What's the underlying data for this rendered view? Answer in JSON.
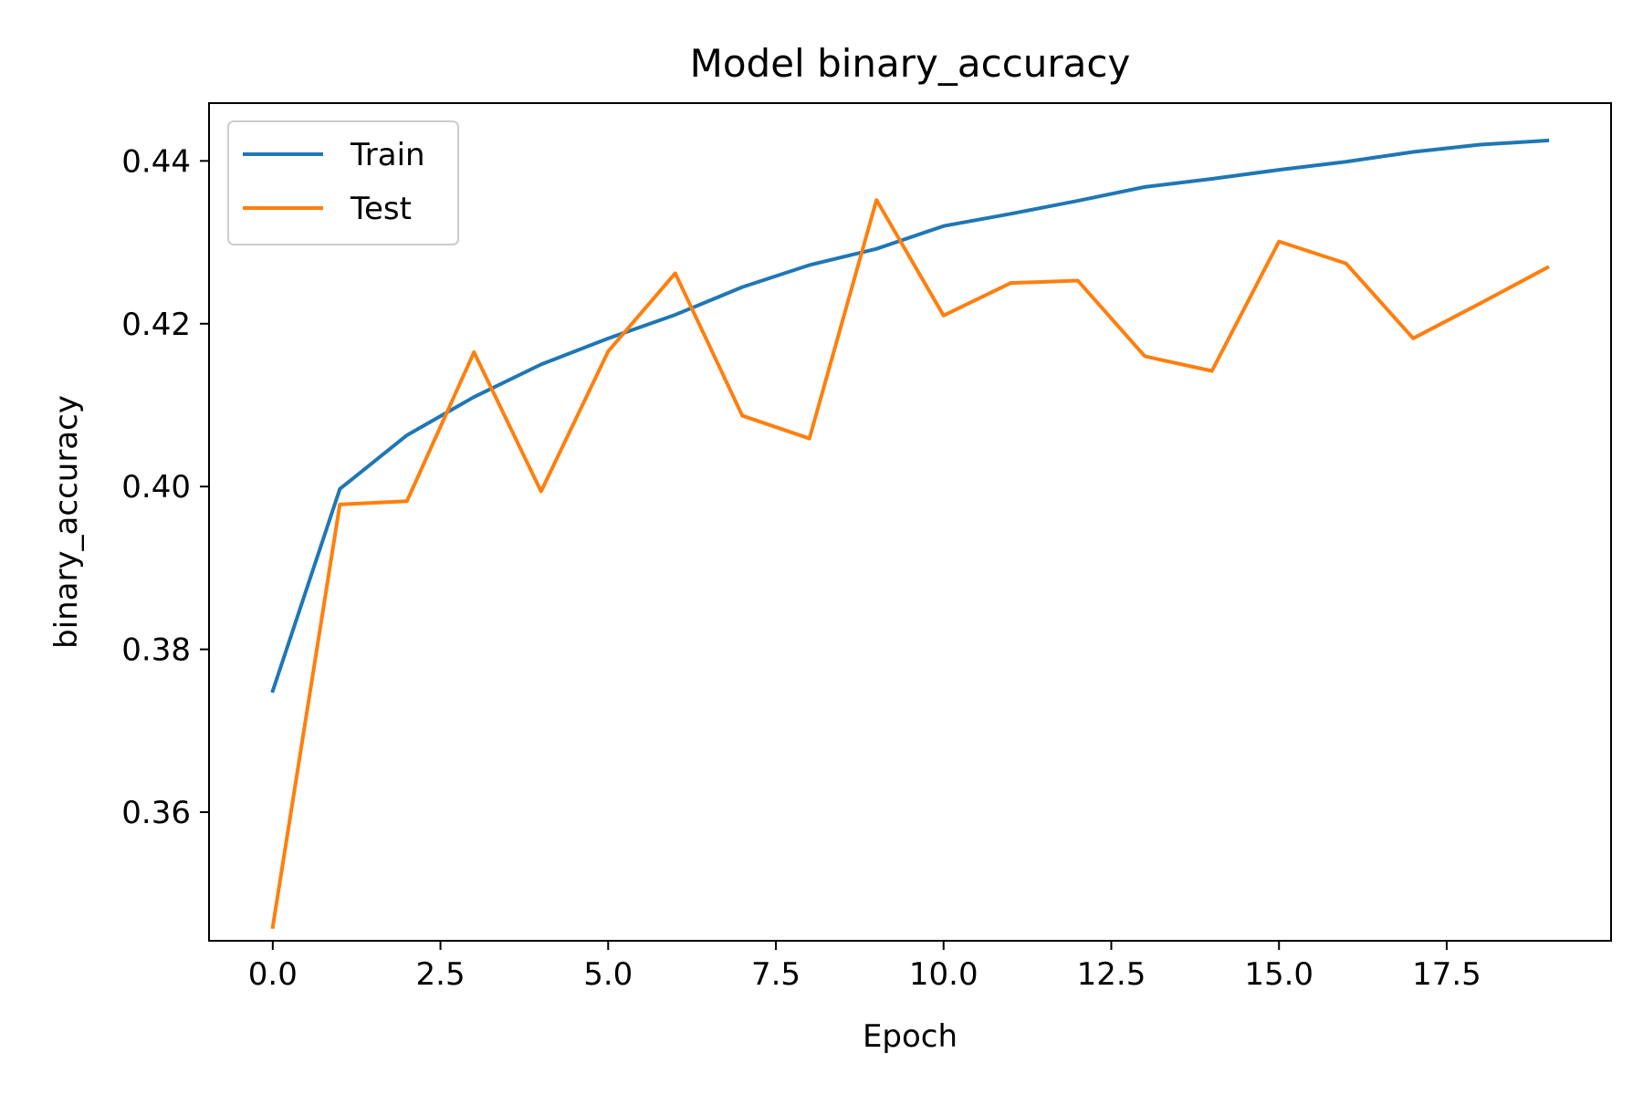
{
  "chart_data": {
    "type": "line",
    "title": "Model binary_accuracy",
    "xlabel": "Epoch",
    "ylabel": "binary_accuracy",
    "xlim": [
      -0.95,
      19.95
    ],
    "ylim": [
      0.3442,
      0.4471
    ],
    "x_ticks": [
      0.0,
      2.5,
      5.0,
      7.5,
      10.0,
      12.5,
      15.0,
      17.5
    ],
    "x_tick_labels": [
      "0.0",
      "2.5",
      "5.0",
      "7.5",
      "10.0",
      "12.5",
      "15.0",
      "17.5"
    ],
    "y_ticks": [
      0.36,
      0.38,
      0.4,
      0.42,
      0.44
    ],
    "y_tick_labels": [
      "0.36",
      "0.38",
      "0.40",
      "0.42",
      "0.44"
    ],
    "grid": false,
    "legend_position": "upper-left",
    "x": [
      0,
      1,
      2,
      3,
      4,
      5,
      6,
      7,
      8,
      9,
      10,
      11,
      12,
      13,
      14,
      15,
      16,
      17,
      18,
      19
    ],
    "series": [
      {
        "name": "Train",
        "color": "#1f77b4",
        "values": [
          0.3749,
          0.3997,
          0.4063,
          0.411,
          0.415,
          0.4182,
          0.4211,
          0.4245,
          0.4272,
          0.4292,
          0.432,
          0.4335,
          0.4351,
          0.4368,
          0.4378,
          0.4389,
          0.4399,
          0.4411,
          0.442,
          0.4425
        ]
      },
      {
        "name": "Test",
        "color": "#ff7f0e",
        "values": [
          0.3459,
          0.3978,
          0.3982,
          0.4165,
          0.3994,
          0.4166,
          0.4262,
          0.4087,
          0.4059,
          0.4352,
          0.421,
          0.425,
          0.4253,
          0.416,
          0.4142,
          0.4301,
          0.4274,
          0.4182,
          0.4225,
          0.4269
        ]
      }
    ]
  }
}
